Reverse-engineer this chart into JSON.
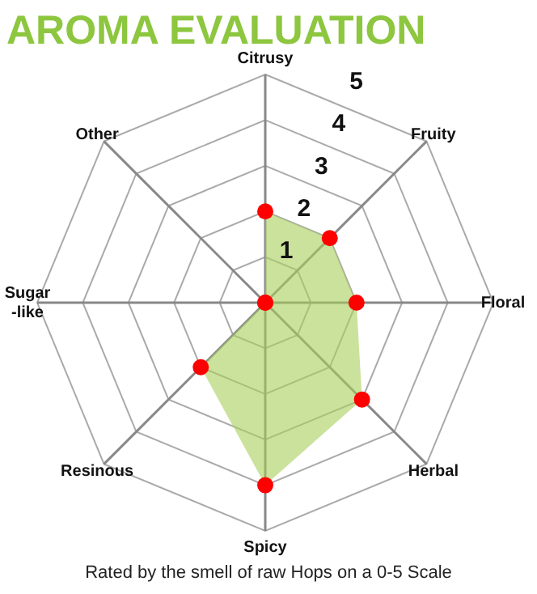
{
  "chart_data": {
    "type": "radar",
    "title": "AROMA EVALUATION",
    "annotations": [
      "Rated by the smell of raw Hops on a 0-5 Scale"
    ],
    "categories": [
      "Citrusy",
      "Fruity",
      "Floral",
      "Herbal",
      "Spicy",
      "Resinous",
      "Sugar-like",
      "Other"
    ],
    "series": [
      {
        "color": "#a8cf5a",
        "values": [
          2,
          2,
          2,
          3,
          4,
          2,
          0,
          0
        ]
      }
    ],
    "ylim": [
      0,
      5
    ],
    "yticks": [
      1,
      2,
      3,
      4,
      5
    ],
    "grid": true,
    "marker": "circle"
  }
}
